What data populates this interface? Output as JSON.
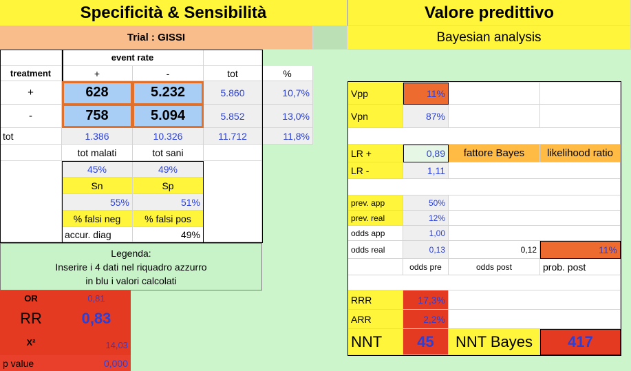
{
  "header": {
    "left_title": "Specificità & Sensibilità",
    "right_title": "Valore predittivo",
    "trial": "Trial : GISSI",
    "bayesian": "Bayesian analysis"
  },
  "contingency": {
    "event_rate": "event  rate",
    "treatment": "treatment",
    "plus": "+",
    "minus": "-",
    "tot": "tot",
    "percent": "%",
    "row_plus": {
      "label": "+",
      "a": "628",
      "b": "5.232",
      "tot": "5.860",
      "pct": "10,7%"
    },
    "row_minus": {
      "label": "-",
      "a": "758",
      "b": "5.094",
      "tot": "5.852",
      "pct": "13,0%"
    },
    "row_tot": {
      "label": "tot",
      "a": "1.386",
      "b": "10.326",
      "tot": "11.712",
      "pct": "11,8%"
    },
    "tot_malati": "tot malati",
    "tot_sani": "tot sani"
  },
  "stats": {
    "sn_value": "45%",
    "sp_value": "49%",
    "sn_label": "Sn",
    "sp_label": "Sp",
    "falsi_neg_value": "55%",
    "falsi_pos_value": "51%",
    "falsi_neg_label": "% falsi neg",
    "falsi_pos_label": "% falsi pos",
    "accur_label": "accur. diag",
    "accur_value": "49%"
  },
  "legend": {
    "title": "Legenda:",
    "line1": "Inserire i 4 dati  nel riquadro azzurro",
    "line2": "in blu i valori calcolati"
  },
  "risk": {
    "or_label": "OR",
    "or_value": "0,81",
    "rr_label": "RR",
    "rr_value": "0,83",
    "chi_label": "X²",
    "chi_value": "14,03",
    "p_label": "p value",
    "p_value": "0,000"
  },
  "predictive": {
    "vpp_label": "Vpp",
    "vpp_value": "11%",
    "vpn_label": "Vpn",
    "vpn_value": "87%",
    "lr_plus_label": "LR +",
    "lr_plus_value": "0,89",
    "fattore_bayes": "fattore Bayes",
    "likelihood_ratio": "likelihood ratio",
    "lr_minus_label": "LR -",
    "lr_minus_value": "1,11",
    "prev_app_label": "prev. app",
    "prev_app_value": "50%",
    "prev_real_label": "prev. real",
    "prev_real_value": "12%",
    "odds_app_label": "odds app",
    "odds_app_value": "1,00",
    "odds_real_label": "odds real",
    "odds_real_value": "0,13",
    "odds_post_value": "0,12",
    "prob_post_value": "11%",
    "odds_pre_label": "odds pre",
    "odds_post_label": "odds post",
    "prob_post_label": "prob. post",
    "rrr_label": "RRR",
    "rrr_value": "17,3%",
    "arr_label": "ARR",
    "arr_value": "2,2%",
    "nnt_label": "NNT",
    "nnt_value": "45",
    "nnt_bayes_label": "NNT Bayes",
    "nnt_bayes_value": "417"
  },
  "colors": {
    "background": "#ccf5cc",
    "yellow": "#fff53a",
    "orange": "#ed6b2e",
    "light_orange": "#ffbb44",
    "peach": "#f9bd8c",
    "input_blue": "#a8cef6",
    "red": "#e43a22",
    "value_blue": "#2a40d8"
  }
}
